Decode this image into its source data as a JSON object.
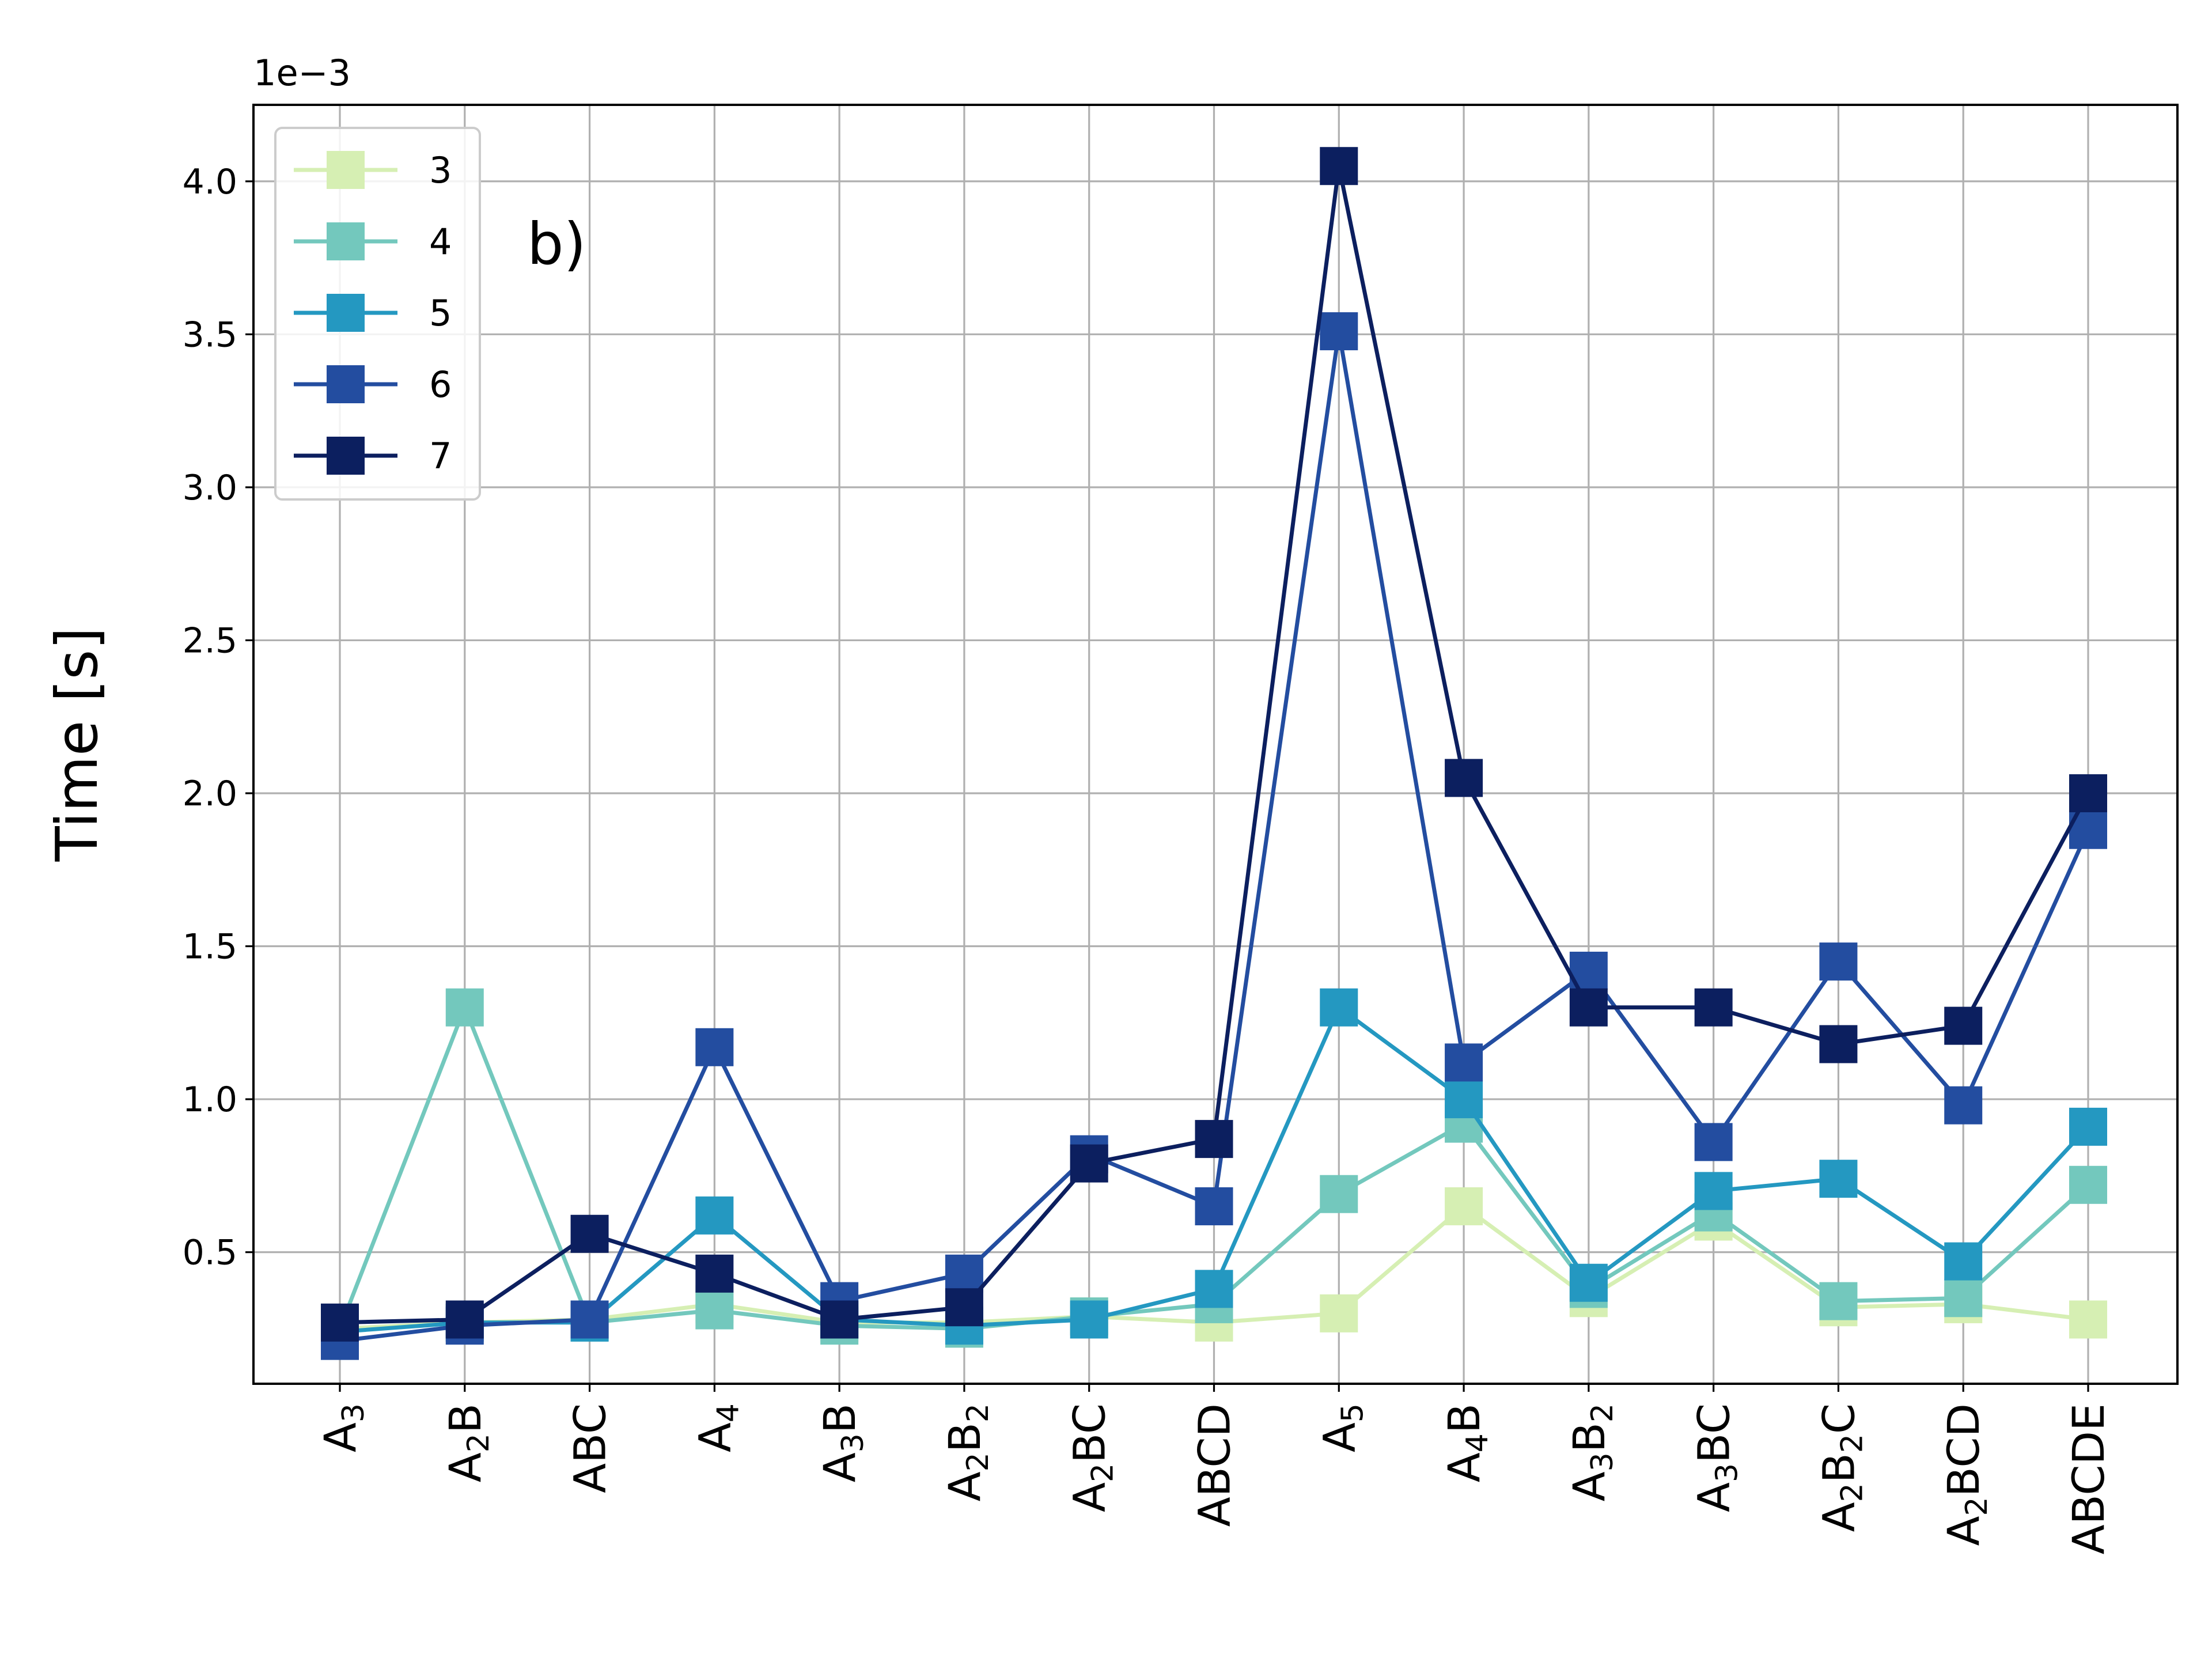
{
  "chart_data": {
    "type": "line",
    "panel_label": "b)",
    "ylabel": "Time [s]",
    "xlabel": "",
    "y_scale_label": "1e−3",
    "ylim": [
      0.07,
      4.25
    ],
    "yticks": [
      "0.5",
      "1.0",
      "1.5",
      "2.0",
      "2.5",
      "3.0",
      "3.5",
      "4.0"
    ],
    "ytick_values": [
      0.5,
      1.0,
      1.5,
      2.0,
      2.5,
      3.0,
      3.5,
      4.0
    ],
    "grid": true,
    "legend_position": "top-left",
    "marker": "square",
    "categories": [
      {
        "label": "A3",
        "parts": [
          [
            "A",
            ""
          ],
          [
            "3",
            "sub"
          ]
        ]
      },
      {
        "label": "A2B",
        "parts": [
          [
            "A",
            ""
          ],
          [
            "2",
            "sub"
          ],
          [
            "B",
            ""
          ]
        ]
      },
      {
        "label": "ABC",
        "parts": [
          [
            "ABC",
            ""
          ]
        ]
      },
      {
        "label": "A4",
        "parts": [
          [
            "A",
            ""
          ],
          [
            "4",
            "sub"
          ]
        ]
      },
      {
        "label": "A3B",
        "parts": [
          [
            "A",
            ""
          ],
          [
            "3",
            "sub"
          ],
          [
            "B",
            ""
          ]
        ]
      },
      {
        "label": "A2B2",
        "parts": [
          [
            "A",
            ""
          ],
          [
            "2",
            "sub"
          ],
          [
            "B",
            ""
          ],
          [
            "2",
            "sub"
          ]
        ]
      },
      {
        "label": "A2BC",
        "parts": [
          [
            "A",
            ""
          ],
          [
            "2",
            "sub"
          ],
          [
            "BC",
            ""
          ]
        ]
      },
      {
        "label": "ABCD",
        "parts": [
          [
            "ABCD",
            ""
          ]
        ]
      },
      {
        "label": "A5",
        "parts": [
          [
            "A",
            ""
          ],
          [
            "5",
            "sub"
          ]
        ]
      },
      {
        "label": "A4B",
        "parts": [
          [
            "A",
            ""
          ],
          [
            "4",
            "sub"
          ],
          [
            "B",
            ""
          ]
        ]
      },
      {
        "label": "A3B2",
        "parts": [
          [
            "A",
            ""
          ],
          [
            "3",
            "sub"
          ],
          [
            "B",
            ""
          ],
          [
            "2",
            "sub"
          ]
        ]
      },
      {
        "label": "A3BC",
        "parts": [
          [
            "A",
            ""
          ],
          [
            "3",
            "sub"
          ],
          [
            "BC",
            ""
          ]
        ]
      },
      {
        "label": "A2B2C",
        "parts": [
          [
            "A",
            ""
          ],
          [
            "2",
            "sub"
          ],
          [
            "B",
            ""
          ],
          [
            "2",
            "sub"
          ],
          [
            "C",
            ""
          ]
        ]
      },
      {
        "label": "A2BCD",
        "parts": [
          [
            "A",
            ""
          ],
          [
            "2",
            "sub"
          ],
          [
            "BCD",
            ""
          ]
        ]
      },
      {
        "label": "ABCDE",
        "parts": [
          [
            "ABCDE",
            ""
          ]
        ]
      }
    ],
    "series": [
      {
        "name": "3",
        "color": "#d6efb3",
        "values": [
          0.25,
          0.27,
          0.28,
          0.33,
          0.27,
          0.27,
          0.29,
          0.27,
          0.3,
          0.65,
          0.35,
          0.6,
          0.32,
          0.33,
          0.28
        ]
      },
      {
        "name": "4",
        "color": "#73c8bd",
        "values": [
          0.25,
          1.3,
          0.27,
          0.31,
          0.26,
          0.25,
          0.29,
          0.33,
          0.69,
          0.92,
          0.38,
          0.63,
          0.34,
          0.35,
          0.72
        ]
      },
      {
        "name": "5",
        "color": "#2498c1",
        "values": [
          0.24,
          0.27,
          0.27,
          0.62,
          0.28,
          0.26,
          0.28,
          0.38,
          1.3,
          1.0,
          0.4,
          0.7,
          0.74,
          0.47,
          0.91
        ]
      },
      {
        "name": "6",
        "color": "#234da0",
        "values": [
          0.21,
          0.26,
          0.28,
          1.17,
          0.34,
          0.43,
          0.82,
          0.65,
          3.51,
          1.12,
          1.42,
          0.86,
          1.45,
          0.98,
          1.88
        ]
      },
      {
        "name": "7",
        "color": "#0c1f5f",
        "values": [
          0.27,
          0.28,
          0.56,
          0.43,
          0.28,
          0.32,
          0.79,
          0.87,
          4.05,
          2.05,
          1.3,
          1.3,
          1.18,
          1.24,
          2.0
        ]
      }
    ]
  }
}
